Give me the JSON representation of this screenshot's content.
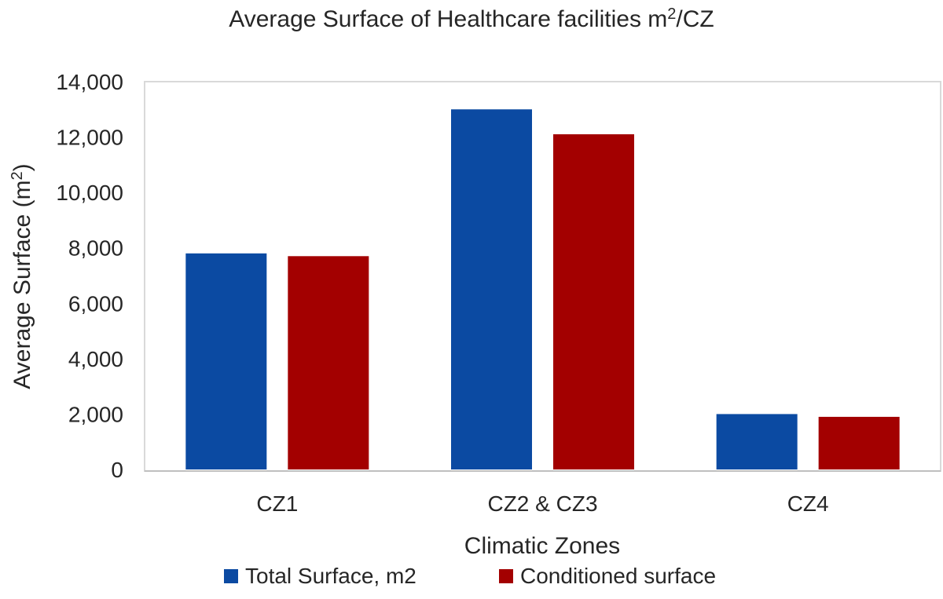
{
  "chart_data": {
    "type": "bar",
    "title": "Average Surface of Healthcare facilities m",
    "title_superscript": "2",
    "title_suffix": "/CZ",
    "xlabel": "Climatic Zones",
    "ylabel": "Average Surface (m",
    "ylabel_superscript": "2",
    "ylabel_suffix": ")",
    "categories": [
      "CZ1",
      "CZ2 & CZ3",
      "CZ4"
    ],
    "series": [
      {
        "name": "Total Surface, m2",
        "color": "#0b4aa2",
        "values": [
          7800,
          13000,
          2000
        ]
      },
      {
        "name": "Conditioned surface",
        "color": "#a30000",
        "values": [
          7700,
          12100,
          1900
        ]
      }
    ],
    "ylim": [
      0,
      14000
    ],
    "yticks": [
      0,
      2000,
      4000,
      6000,
      8000,
      10000,
      12000,
      14000
    ],
    "ytick_labels": [
      "0",
      "2,000",
      "4,000",
      "6,000",
      "8,000",
      "10,000",
      "12,000",
      "14,000"
    ],
    "grid": false,
    "legend": {
      "position": "bottom-center"
    }
  }
}
